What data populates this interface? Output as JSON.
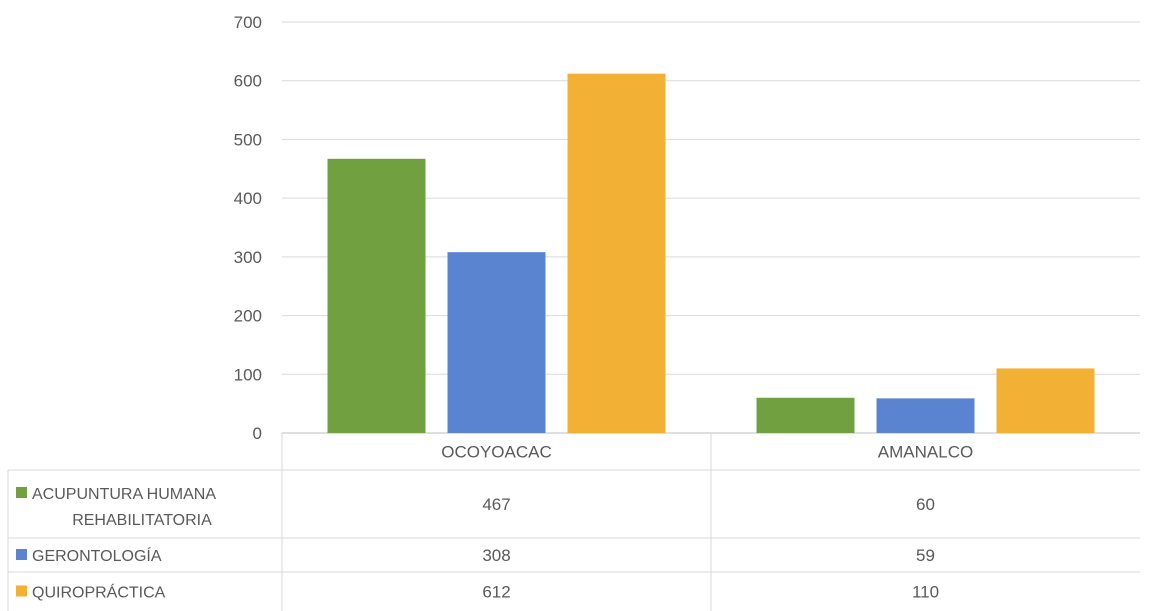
{
  "chart_data": {
    "type": "bar",
    "categories": [
      "OCOYOACAC",
      "AMANALCO"
    ],
    "series": [
      {
        "name": "ACUPUNTURA HUMANA REHABILITATORIA",
        "name_lines": [
          "ACUPUNTURA HUMANA",
          "REHABILITATORIA"
        ],
        "values": [
          467,
          60
        ],
        "color": "#70A040"
      },
      {
        "name": "GERONTOLOGÍA",
        "name_lines": [
          "GERONTOLOGÍA"
        ],
        "values": [
          308,
          59
        ],
        "color": "#5B84D0"
      },
      {
        "name": "QUIROPRÁCTICA",
        "name_lines": [
          "QUIROPRÁCTICA"
        ],
        "values": [
          612,
          110
        ],
        "color": "#F2B134"
      }
    ],
    "ylim": [
      0,
      700
    ],
    "yticks": [
      0,
      100,
      200,
      300,
      400,
      500,
      600,
      700
    ],
    "grid": true,
    "data_table": true,
    "title": "",
    "xlabel": "",
    "ylabel": ""
  }
}
